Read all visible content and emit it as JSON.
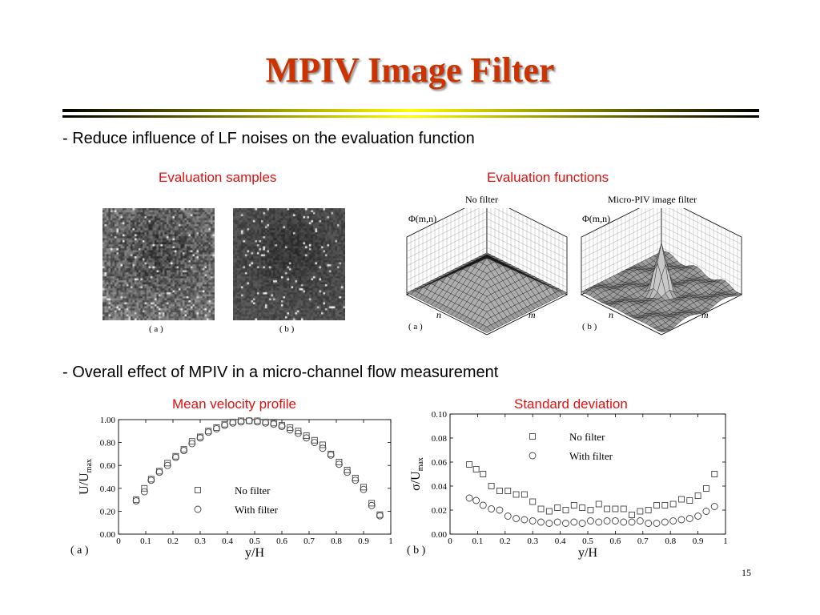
{
  "slide": {
    "title": "MPIV Image Filter",
    "bullet1": "- Reduce influence of LF noises on the evaluation function",
    "bullet2": "- Overall effect of MPIV  in a micro-channel flow measurement",
    "page_number": "15"
  },
  "top_left": {
    "heading": "Evaluation samples",
    "label_a": "( a )",
    "label_b": "( b )"
  },
  "top_right": {
    "heading": "Evaluation functions",
    "panel_a": {
      "title": "No filter",
      "zlabel": "Φ(m,n)",
      "axis_n": "n",
      "axis_m": "m",
      "label": "( a )"
    },
    "panel_b": {
      "title": "Micro-PIV image filter",
      "zlabel": "Φ(m,n)",
      "axis_n": "n",
      "axis_m": "m",
      "label": "( b )"
    }
  },
  "bottom_left_heading": "Mean velocity profile",
  "bottom_right_heading": "Standard deviation",
  "chart_data": [
    {
      "type": "scatter",
      "xlabel": "y/H",
      "ylabel": "U/U",
      "ylabel_sub": "max",
      "panel_label": "( a )",
      "xlim": [
        0,
        1
      ],
      "ylim": [
        0,
        1
      ],
      "xticks": [
        "0",
        "0.1",
        "0.2",
        "0.3",
        "0.4",
        "0.5",
        "0.6",
        "0.7",
        "0.8",
        "0.9",
        "1"
      ],
      "yticks": [
        "0.00",
        "0.20",
        "0.40",
        "0.60",
        "0.80",
        "1.00"
      ],
      "x": [
        0.065,
        0.095,
        0.12,
        0.15,
        0.18,
        0.21,
        0.24,
        0.27,
        0.3,
        0.33,
        0.36,
        0.39,
        0.42,
        0.45,
        0.48,
        0.51,
        0.54,
        0.57,
        0.6,
        0.63,
        0.66,
        0.69,
        0.72,
        0.75,
        0.78,
        0.81,
        0.84,
        0.87,
        0.9,
        0.93,
        0.96
      ],
      "series": [
        {
          "name": "No filter",
          "marker": "square",
          "values": [
            0.3,
            0.4,
            0.48,
            0.55,
            0.62,
            0.68,
            0.74,
            0.81,
            0.85,
            0.9,
            0.93,
            0.96,
            0.98,
            0.99,
            0.99,
            0.99,
            0.98,
            0.97,
            0.95,
            0.93,
            0.9,
            0.86,
            0.82,
            0.78,
            0.7,
            0.63,
            0.56,
            0.49,
            0.41,
            0.27,
            0.17
          ]
        },
        {
          "name": "With filter",
          "marker": "circle",
          "values": [
            0.29,
            0.37,
            0.47,
            0.54,
            0.6,
            0.67,
            0.73,
            0.79,
            0.84,
            0.89,
            0.92,
            0.95,
            0.97,
            0.98,
            0.99,
            0.98,
            0.97,
            0.96,
            0.94,
            0.91,
            0.88,
            0.84,
            0.8,
            0.75,
            0.69,
            0.61,
            0.54,
            0.47,
            0.39,
            0.25,
            0.16
          ]
        }
      ]
    },
    {
      "type": "scatter",
      "xlabel": "y/H",
      "ylabel": "σ/U",
      "ylabel_sub": "max",
      "panel_label": "( b )",
      "xlim": [
        0,
        1
      ],
      "ylim": [
        0,
        0.1
      ],
      "xticks": [
        "0",
        "0.1",
        "0.2",
        "0.3",
        "0.4",
        "0.5",
        "0.6",
        "0.7",
        "0.8",
        "0.9",
        "1"
      ],
      "yticks": [
        "0.00",
        "0.02",
        "0.04",
        "0.06",
        "0.08",
        "0.10"
      ],
      "x": [
        0.07,
        0.095,
        0.12,
        0.15,
        0.18,
        0.21,
        0.24,
        0.27,
        0.3,
        0.33,
        0.36,
        0.39,
        0.42,
        0.45,
        0.48,
        0.51,
        0.54,
        0.57,
        0.6,
        0.63,
        0.66,
        0.69,
        0.72,
        0.75,
        0.78,
        0.81,
        0.84,
        0.87,
        0.9,
        0.93,
        0.96
      ],
      "series": [
        {
          "name": "No filter",
          "marker": "square",
          "values": [
            0.058,
            0.054,
            0.05,
            0.04,
            0.036,
            0.036,
            0.033,
            0.033,
            0.027,
            0.021,
            0.019,
            0.022,
            0.02,
            0.024,
            0.022,
            0.02,
            0.025,
            0.021,
            0.021,
            0.021,
            0.016,
            0.019,
            0.02,
            0.024,
            0.024,
            0.025,
            0.029,
            0.028,
            0.032,
            0.038,
            0.05
          ]
        },
        {
          "name": "With filter",
          "marker": "circle",
          "values": [
            0.03,
            0.028,
            0.024,
            0.021,
            0.02,
            0.015,
            0.013,
            0.012,
            0.011,
            0.01,
            0.009,
            0.01,
            0.009,
            0.01,
            0.009,
            0.011,
            0.01,
            0.011,
            0.011,
            0.01,
            0.01,
            0.011,
            0.009,
            0.009,
            0.01,
            0.011,
            0.012,
            0.013,
            0.015,
            0.019,
            0.023
          ]
        }
      ]
    }
  ]
}
